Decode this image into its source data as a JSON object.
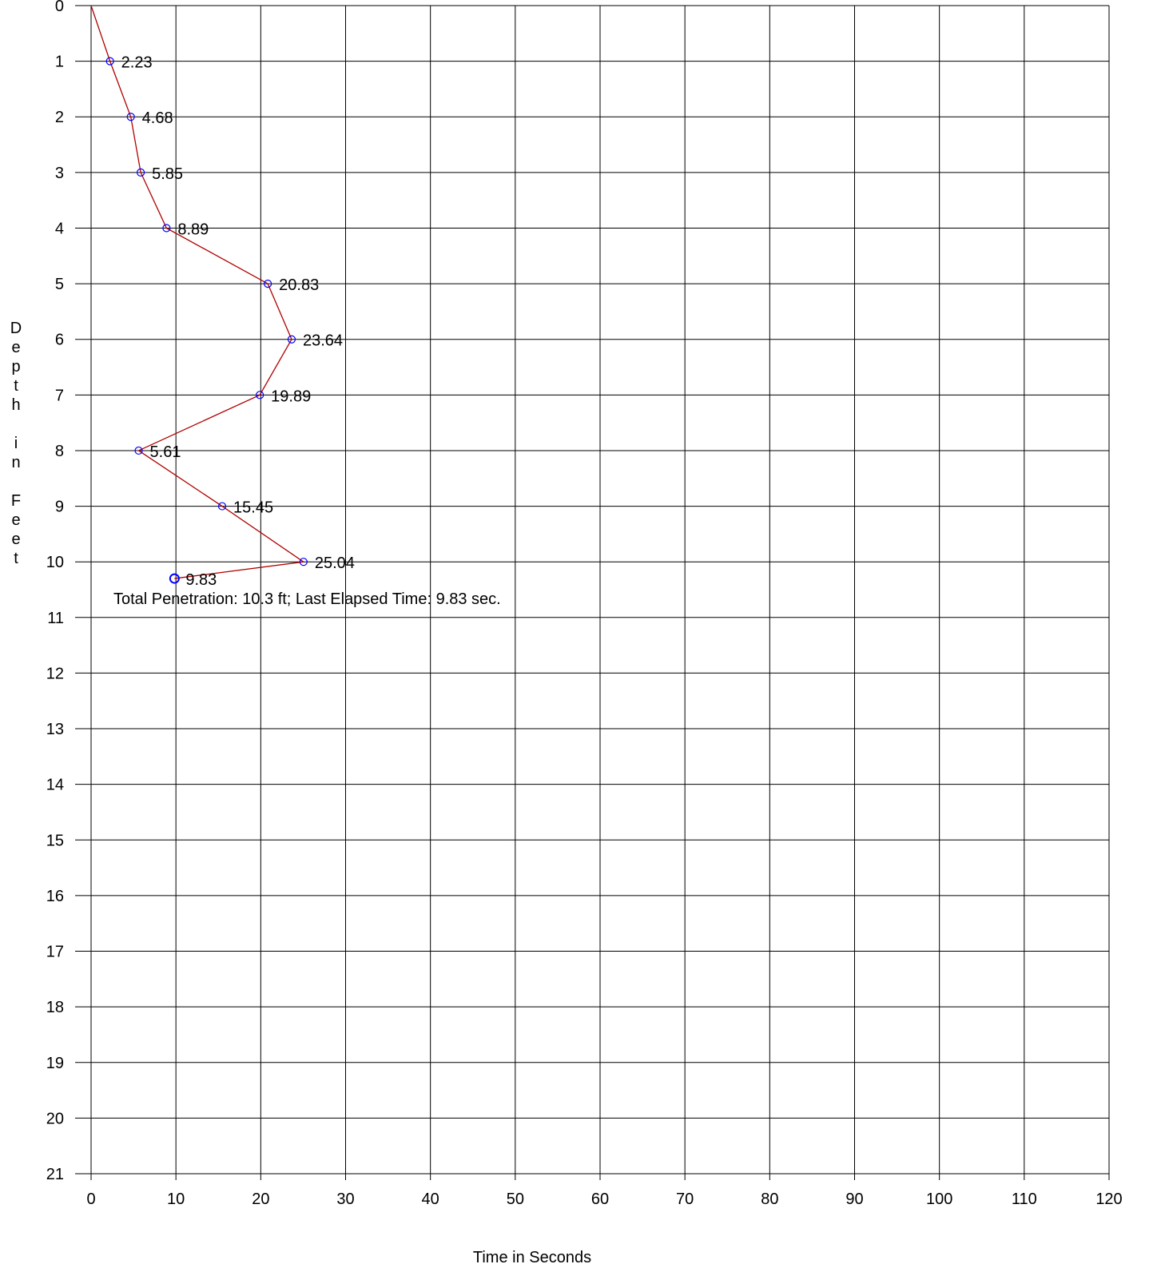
{
  "chart_data": {
    "type": "line",
    "title": "",
    "xlabel": "Time in Seconds",
    "ylabel": "Depth in Feet",
    "xlim": [
      0,
      120
    ],
    "ylim": [
      0,
      21
    ],
    "y_inverted": true,
    "x_ticks": [
      0,
      10,
      20,
      30,
      40,
      50,
      60,
      70,
      80,
      90,
      100,
      110,
      120
    ],
    "y_ticks": [
      0,
      1,
      2,
      3,
      4,
      5,
      6,
      7,
      8,
      9,
      10,
      11,
      12,
      13,
      14,
      15,
      16,
      17,
      18,
      19,
      20,
      21
    ],
    "grid": true,
    "series": [
      {
        "line_color": "#b00000",
        "marker_color": "#0000ff",
        "marker": "open-circle",
        "x": [
          0,
          2.23,
          4.68,
          5.85,
          8.89,
          20.83,
          23.64,
          19.89,
          5.61,
          15.45,
          25.04,
          9.83
        ],
        "y": [
          0,
          1,
          2,
          3,
          4,
          5,
          6,
          7,
          8,
          9,
          10,
          10.3
        ],
        "labels": [
          "",
          "2.23",
          "4.68",
          "5.85",
          "8.89",
          "20.83",
          "23.64",
          "19.89",
          "5.61",
          "15.45",
          "25.04",
          "9.83"
        ]
      }
    ],
    "annotation": "Total Penetration:  10.3 ft; Last Elapsed Time:  9.83 sec."
  }
}
